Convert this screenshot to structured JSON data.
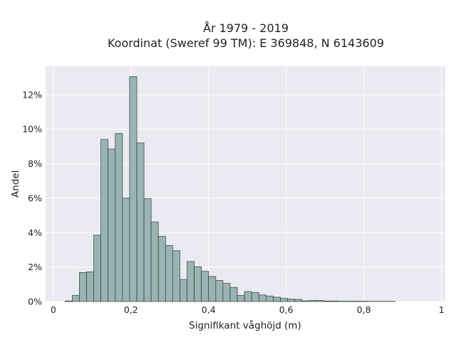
{
  "chart_data": {
    "type": "bar",
    "title_lines": [
      "År 1979 - 2019",
      "Koordinat (Sweref 99 TM): E 369848, N 6143609"
    ],
    "xlabel": "Signifikant våghöjd (m)",
    "ylabel": "Andel",
    "xlim": [
      -0.02,
      1.01
    ],
    "ylim": [
      0,
      0.1365
    ],
    "x_ticks": [
      0,
      0.2,
      0.4,
      0.6,
      0.8,
      1
    ],
    "x_tick_labels": [
      "0",
      "0,2",
      "0,4",
      "0,6",
      "0,8",
      "1"
    ],
    "y_ticks": [
      0,
      0.02,
      0.04,
      0.06,
      0.08,
      0.1,
      0.12
    ],
    "y_tick_labels": [
      "0%",
      "2%",
      "4%",
      "6%",
      "8%",
      "10%",
      "12%"
    ],
    "grid": true,
    "bin_width": 0.0185,
    "bin_start": 0.03,
    "values": [
      0.0003,
      0.0035,
      0.0168,
      0.0172,
      0.0385,
      0.094,
      0.0885,
      0.0975,
      0.06,
      0.1305,
      0.092,
      0.0597,
      0.0462,
      0.0378,
      0.0325,
      0.0295,
      0.0128,
      0.0232,
      0.0202,
      0.0175,
      0.0145,
      0.0122,
      0.0105,
      0.0082,
      0.0035,
      0.0058,
      0.0052,
      0.0038,
      0.0032,
      0.0025,
      0.0018,
      0.0014,
      0.0012,
      0.0004,
      0.0006,
      0.0006,
      0.0003,
      0.0003,
      0.0002,
      0.0002,
      0.0002,
      0.0002,
      0.0001,
      0.0001,
      0.0001,
      0.0001
    ],
    "colors": {
      "background": "#eaeaf2",
      "bar_fill": "#9ab4b4",
      "bar_edge": "#2e3a3a",
      "grid": "#ffffff"
    }
  }
}
